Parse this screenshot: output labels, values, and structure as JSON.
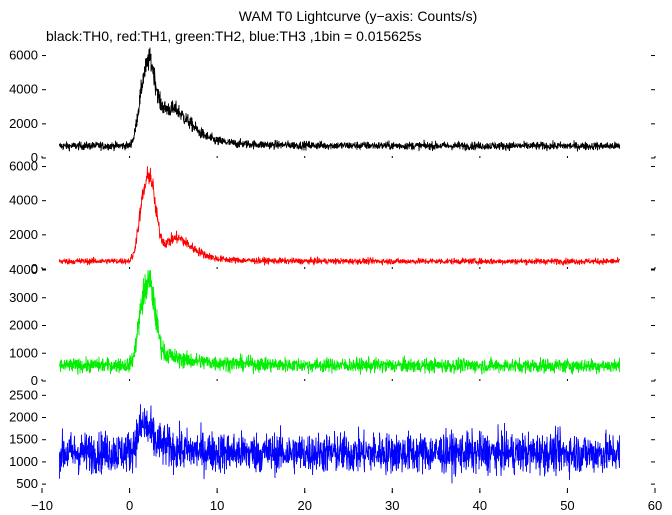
{
  "chart_data": {
    "type": "line",
    "title": "WAM T0 Lightcurve (y−axis: Counts/s)",
    "subtitle": "black:TH0, red:TH1, green:TH2, blue:TH3 ,1bin = 0.015625s",
    "xlabel": "",
    "ylabel": "",
    "xlim": [
      -10,
      60
    ],
    "x_ticks": [
      -10,
      0,
      10,
      20,
      30,
      40,
      50,
      60
    ],
    "x_tick_labels": [
      "−10",
      "0",
      "10",
      "20",
      "30",
      "40",
      "50",
      "60"
    ],
    "data_x_range": [
      -8,
      56
    ],
    "grid": false,
    "legend": "none",
    "series": [
      {
        "name": "TH0",
        "color": "#000000",
        "ylim": [
          0,
          6500
        ],
        "yticks": [
          0,
          2000,
          4000,
          6000
        ],
        "baseline": 700,
        "noise": 120,
        "x": [
          -8,
          0,
          0.5,
          1,
          1.5,
          2,
          2.3,
          2.6,
          3,
          3.5,
          4,
          5,
          5.5,
          6,
          7,
          8,
          9,
          10,
          12,
          15,
          20,
          30,
          40,
          56
        ],
        "values": [
          700,
          720,
          1200,
          2800,
          4600,
          5500,
          5800,
          5400,
          4300,
          3200,
          2900,
          2850,
          2800,
          2500,
          2000,
          1500,
          1200,
          1000,
          850,
          780,
          740,
          720,
          710,
          700
        ]
      },
      {
        "name": "TH1",
        "color": "#ff0000",
        "ylim": [
          0,
          6500
        ],
        "yticks": [
          0,
          2000,
          4000,
          6000
        ],
        "baseline": 450,
        "noise": 90,
        "x": [
          -8,
          0,
          0.5,
          1,
          1.5,
          2,
          2.3,
          2.6,
          3,
          3.5,
          4,
          5,
          5.5,
          6,
          7,
          8,
          9,
          10,
          12,
          15,
          20,
          30,
          40,
          56
        ],
        "values": [
          450,
          470,
          900,
          2500,
          4300,
          5300,
          5600,
          5000,
          3500,
          2000,
          1500,
          1750,
          1850,
          1700,
          1300,
          1000,
          750,
          600,
          520,
          480,
          460,
          455,
          450,
          450
        ]
      },
      {
        "name": "TH2",
        "color": "#00ee00",
        "ylim": [
          0,
          4000
        ],
        "yticks": [
          0,
          1000,
          2000,
          3000,
          4000
        ],
        "baseline": 550,
        "noise": 130,
        "x": [
          -8,
          0,
          0.5,
          1,
          1.5,
          2,
          2.3,
          2.6,
          3,
          3.5,
          4,
          5,
          6,
          8,
          10,
          15,
          20,
          30,
          40,
          56
        ],
        "values": [
          550,
          580,
          900,
          2000,
          3000,
          3500,
          3600,
          3200,
          2300,
          1400,
          1000,
          850,
          780,
          700,
          650,
          600,
          570,
          560,
          555,
          550
        ]
      },
      {
        "name": "TH3",
        "color": "#0000ff",
        "ylim": [
          300,
          2800
        ],
        "yticks": [
          500,
          1000,
          1500,
          2000,
          2500
        ],
        "baseline": 1200,
        "noise": 230,
        "x": [
          -8,
          0,
          0.5,
          1,
          1.5,
          2,
          2.5,
          3,
          4,
          5,
          6,
          10,
          20,
          30,
          40,
          56
        ],
        "values": [
          1200,
          1230,
          1350,
          1650,
          1850,
          1800,
          1600,
          1450,
          1350,
          1300,
          1260,
          1220,
          1200,
          1200,
          1200,
          1200
        ]
      }
    ]
  }
}
